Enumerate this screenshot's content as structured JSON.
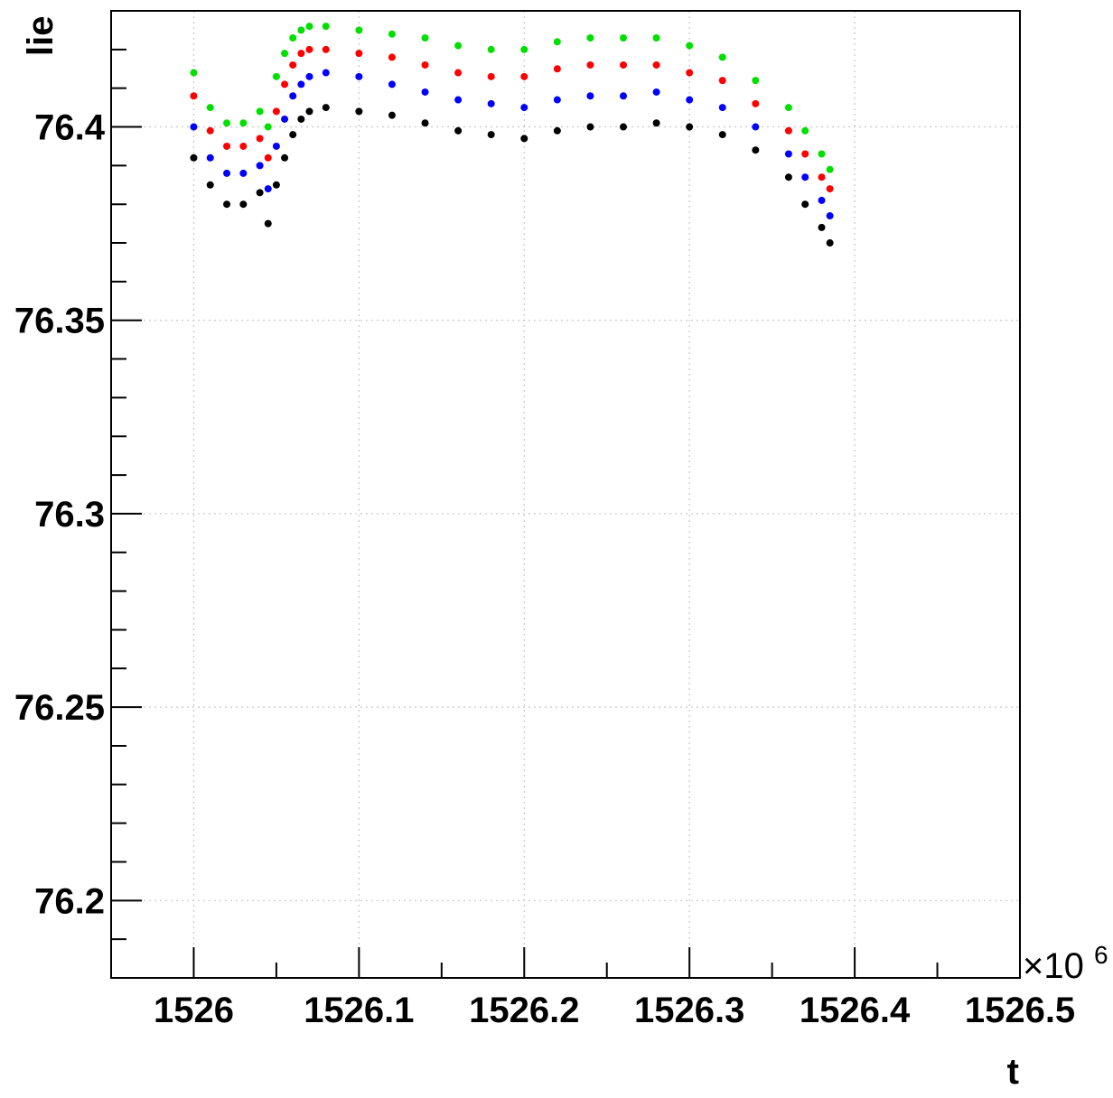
{
  "chart_data": {
    "type": "scatter",
    "title": "",
    "xlabel": "t",
    "ylabel": "lie",
    "x_multiplier_label": "×10",
    "x_multiplier_exponent": "6",
    "xlim": [
      1525.95,
      1526.5
    ],
    "ylim": [
      76.18,
      76.43
    ],
    "grid": true,
    "legend": "none",
    "x_ticks": [
      {
        "value": 1526.0,
        "label": "1526"
      },
      {
        "value": 1526.1,
        "label": "1526.1"
      },
      {
        "value": 1526.2,
        "label": "1526.2"
      },
      {
        "value": 1526.3,
        "label": "1526.3"
      },
      {
        "value": 1526.4,
        "label": "1526.4"
      },
      {
        "value": 1526.5,
        "label": "1526.5"
      }
    ],
    "y_ticks": [
      {
        "value": 76.2,
        "label": "76.2"
      },
      {
        "value": 76.25,
        "label": "76.25"
      },
      {
        "value": 76.3,
        "label": "76.3"
      },
      {
        "value": 76.35,
        "label": "76.35"
      },
      {
        "value": 76.4,
        "label": "76.4"
      }
    ],
    "series": [
      {
        "color": "#000000",
        "x": [
          1526.0,
          1526.01,
          1526.02,
          1526.03,
          1526.04,
          1526.045,
          1526.05,
          1526.055,
          1526.06,
          1526.065,
          1526.07,
          1526.08,
          1526.1,
          1526.12,
          1526.14,
          1526.16,
          1526.18,
          1526.2,
          1526.22,
          1526.24,
          1526.26,
          1526.28,
          1526.3,
          1526.32,
          1526.34,
          1526.36,
          1526.37,
          1526.38,
          1526.385
        ],
        "y": [
          76.392,
          76.385,
          76.38,
          76.38,
          76.383,
          76.375,
          76.385,
          76.392,
          76.398,
          76.402,
          76.404,
          76.405,
          76.404,
          76.403,
          76.401,
          76.399,
          76.398,
          76.397,
          76.399,
          76.4,
          76.4,
          76.401,
          76.4,
          76.398,
          76.394,
          76.387,
          76.38,
          76.374,
          76.37
        ]
      },
      {
        "color": "#0000ff",
        "x": [
          1526.0,
          1526.01,
          1526.02,
          1526.03,
          1526.04,
          1526.045,
          1526.05,
          1526.055,
          1526.06,
          1526.065,
          1526.07,
          1526.08,
          1526.1,
          1526.12,
          1526.14,
          1526.16,
          1526.18,
          1526.2,
          1526.22,
          1526.24,
          1526.26,
          1526.28,
          1526.3,
          1526.32,
          1526.34,
          1526.36,
          1526.37,
          1526.38,
          1526.385
        ],
        "y": [
          76.4,
          76.392,
          76.388,
          76.388,
          76.39,
          76.384,
          76.395,
          76.402,
          76.408,
          76.411,
          76.413,
          76.414,
          76.413,
          76.411,
          76.409,
          76.407,
          76.406,
          76.405,
          76.407,
          76.408,
          76.408,
          76.409,
          76.407,
          76.405,
          76.4,
          76.393,
          76.387,
          76.381,
          76.377
        ]
      },
      {
        "color": "#ff0000",
        "x": [
          1526.0,
          1526.01,
          1526.02,
          1526.03,
          1526.04,
          1526.045,
          1526.05,
          1526.055,
          1526.06,
          1526.065,
          1526.07,
          1526.08,
          1526.1,
          1526.12,
          1526.14,
          1526.16,
          1526.18,
          1526.2,
          1526.22,
          1526.24,
          1526.26,
          1526.28,
          1526.3,
          1526.32,
          1526.34,
          1526.36,
          1526.37,
          1526.38,
          1526.385
        ],
        "y": [
          76.408,
          76.399,
          76.395,
          76.395,
          76.397,
          76.392,
          76.404,
          76.411,
          76.416,
          76.419,
          76.42,
          76.42,
          76.419,
          76.418,
          76.416,
          76.414,
          76.413,
          76.413,
          76.415,
          76.416,
          76.416,
          76.416,
          76.414,
          76.412,
          76.406,
          76.399,
          76.393,
          76.387,
          76.384
        ]
      },
      {
        "color": "#00e000",
        "x": [
          1526.0,
          1526.01,
          1526.02,
          1526.03,
          1526.04,
          1526.045,
          1526.05,
          1526.055,
          1526.06,
          1526.065,
          1526.07,
          1526.08,
          1526.1,
          1526.12,
          1526.14,
          1526.16,
          1526.18,
          1526.2,
          1526.22,
          1526.24,
          1526.26,
          1526.28,
          1526.3,
          1526.32,
          1526.34,
          1526.36,
          1526.37,
          1526.38,
          1526.385
        ],
        "y": [
          76.414,
          76.405,
          76.401,
          76.401,
          76.404,
          76.4,
          76.413,
          76.419,
          76.423,
          76.425,
          76.426,
          76.426,
          76.425,
          76.424,
          76.423,
          76.421,
          76.42,
          76.42,
          76.422,
          76.423,
          76.423,
          76.423,
          76.421,
          76.418,
          76.412,
          76.405,
          76.399,
          76.393,
          76.389
        ]
      }
    ]
  }
}
